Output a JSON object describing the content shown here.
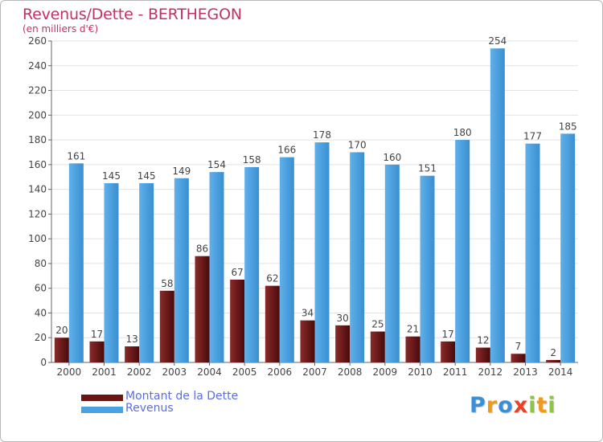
{
  "title": "Revenus/Dette - BERTHEGON",
  "subtitle": "(en milliers d'€)",
  "colors": {
    "debt": "#6b1414",
    "revenue": "#4aa2e2",
    "title": "#c0325f",
    "legend_text": "#5a6ee0"
  },
  "legend": [
    {
      "label": "Montant de la Dette",
      "color": "#6b1414"
    },
    {
      "label": "Revenus",
      "color": "#4aa2e2"
    }
  ],
  "logo": {
    "letters": [
      "P",
      "r",
      "o",
      "x",
      "i",
      "t",
      "i"
    ],
    "colors": [
      "#3b8fd6",
      "#f09a1a",
      "#3b8fd6",
      "#e8432a",
      "#8dc63f",
      "#f09a1a",
      "#8dc63f"
    ]
  },
  "chart_data": {
    "type": "bar",
    "title": "Revenus/Dette - BERTHEGON",
    "subtitle": "(en milliers d'€)",
    "xlabel": "",
    "ylabel": "",
    "categories": [
      "2000",
      "2001",
      "2002",
      "2003",
      "2004",
      "2005",
      "2006",
      "2007",
      "2008",
      "2009",
      "2010",
      "2011",
      "2012",
      "2013",
      "2014"
    ],
    "series": [
      {
        "name": "Montant de la Dette",
        "color": "#6b1414",
        "values": [
          20,
          17,
          13,
          58,
          86,
          67,
          62,
          34,
          30,
          25,
          21,
          17,
          12,
          7,
          2
        ]
      },
      {
        "name": "Revenus",
        "color": "#4aa2e2",
        "values": [
          161,
          145,
          145,
          149,
          154,
          158,
          166,
          178,
          170,
          160,
          151,
          180,
          254,
          177,
          185
        ]
      }
    ],
    "yticks": [
      "0",
      "20",
      "40",
      "60",
      "80",
      "100",
      "120",
      "140",
      "160",
      "180",
      "200",
      "220",
      "240",
      "260"
    ],
    "ylim": [
      0,
      260
    ],
    "grid": true,
    "legend_position": "bottom-left"
  }
}
